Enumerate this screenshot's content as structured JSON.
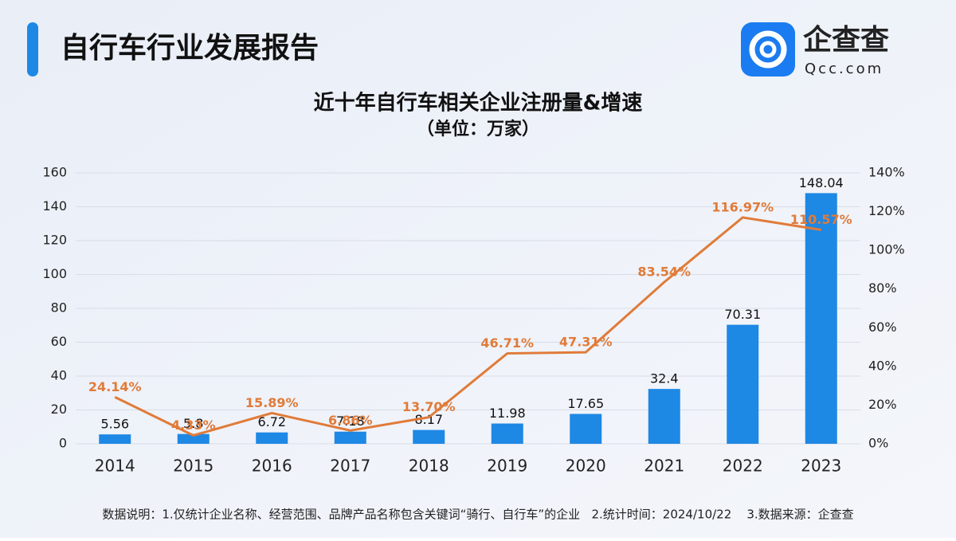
{
  "header": {
    "title": "自行车行业发展报告",
    "logo_name": "企查查",
    "logo_site": "Qcc.com"
  },
  "footer": {
    "note": "数据说明：1.仅统计企业名称、经营范围、品牌产品名称包含关键词“骑行、自行车”的企业   2.统计时间：2024/10/22    3.数据来源：企查查"
  },
  "chart_data": {
    "type": "combo",
    "title": "近十年自行车相关企业注册量&增速",
    "subtitle": "（单位：万家）",
    "categories": [
      "2014",
      "2015",
      "2016",
      "2017",
      "2018",
      "2019",
      "2020",
      "2021",
      "2022",
      "2023"
    ],
    "series": [
      {
        "type": "bar",
        "color": "#1e88e5",
        "values": [
          5.56,
          5.8,
          6.72,
          7.18,
          8.17,
          11.98,
          17.65,
          32.4,
          70.31,
          148.04
        ]
      },
      {
        "type": "line",
        "axis": "y2",
        "color": "#e07b39",
        "values": [
          24.14,
          4.33,
          15.89,
          6.86,
          13.7,
          46.71,
          47.31,
          83.54,
          116.97,
          110.57
        ],
        "value_labels": [
          "24.14%",
          "4.33%",
          "15.89%",
          "6.86%",
          "13.70%",
          "46.71%",
          "47.31%",
          "83.54%",
          "116.97%",
          "110.57%"
        ]
      }
    ],
    "ylim": [
      0,
      160
    ],
    "yticks": [
      0,
      20,
      40,
      60,
      80,
      100,
      120,
      140,
      160
    ],
    "y2lim": [
      0,
      140
    ],
    "y2ticks": [
      {
        "value": 0,
        "label": "0%"
      },
      {
        "value": 20,
        "label": "20%"
      },
      {
        "value": 40,
        "label": "40%"
      },
      {
        "value": 60,
        "label": "60%"
      },
      {
        "value": 80,
        "label": "80%"
      },
      {
        "value": 100,
        "label": "100%"
      },
      {
        "value": 120,
        "label": "120%"
      },
      {
        "value": 140,
        "label": "140%"
      }
    ],
    "grid": true
  }
}
